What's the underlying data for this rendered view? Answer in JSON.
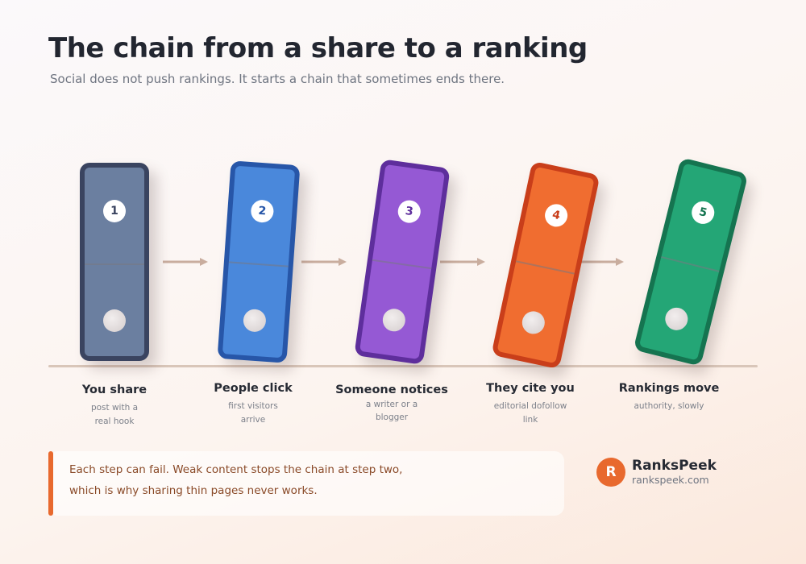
{
  "header": {
    "title": "The chain from a share to a ranking",
    "subtitle": "Social does not push rankings. It starts a chain that sometimes ends there."
  },
  "steps": [
    {
      "number": "1",
      "title": "You share",
      "desc": "post with a real hook",
      "color": "#6b7fa0",
      "border": "#3a4460",
      "text_color": "#3a4460"
    },
    {
      "number": "2",
      "title": "People click",
      "desc": "first visitors arrive",
      "color": "#4a88db",
      "border": "#2756a8",
      "text_color": "#2756a8"
    },
    {
      "number": "3",
      "title": "Someone notices",
      "desc": "a writer or a blogger",
      "color": "#9559d4",
      "border": "#5e2e9c",
      "text_color": "#5e2e9c"
    },
    {
      "number": "4",
      "title": "They cite you",
      "desc": "editorial dofollow link",
      "color": "#f06d30",
      "border": "#c93e1a",
      "text_color": "#c93e1a"
    },
    {
      "number": "5",
      "title": "Rankings move",
      "desc": "authority, slowly",
      "color": "#24a676",
      "border": "#157450",
      "text_color": "#157450"
    }
  ],
  "note": {
    "text": "Each step can fail. Weak content stops the chain at step two, which is why sharing thin pages never works."
  },
  "brand": {
    "logo_letter": "R",
    "name": "RanksPeek",
    "url": "rankspeek.com"
  },
  "colors": {
    "accent": "#e8692e",
    "arrow": "#c9ad9e",
    "ground": "#d9c6b9"
  }
}
